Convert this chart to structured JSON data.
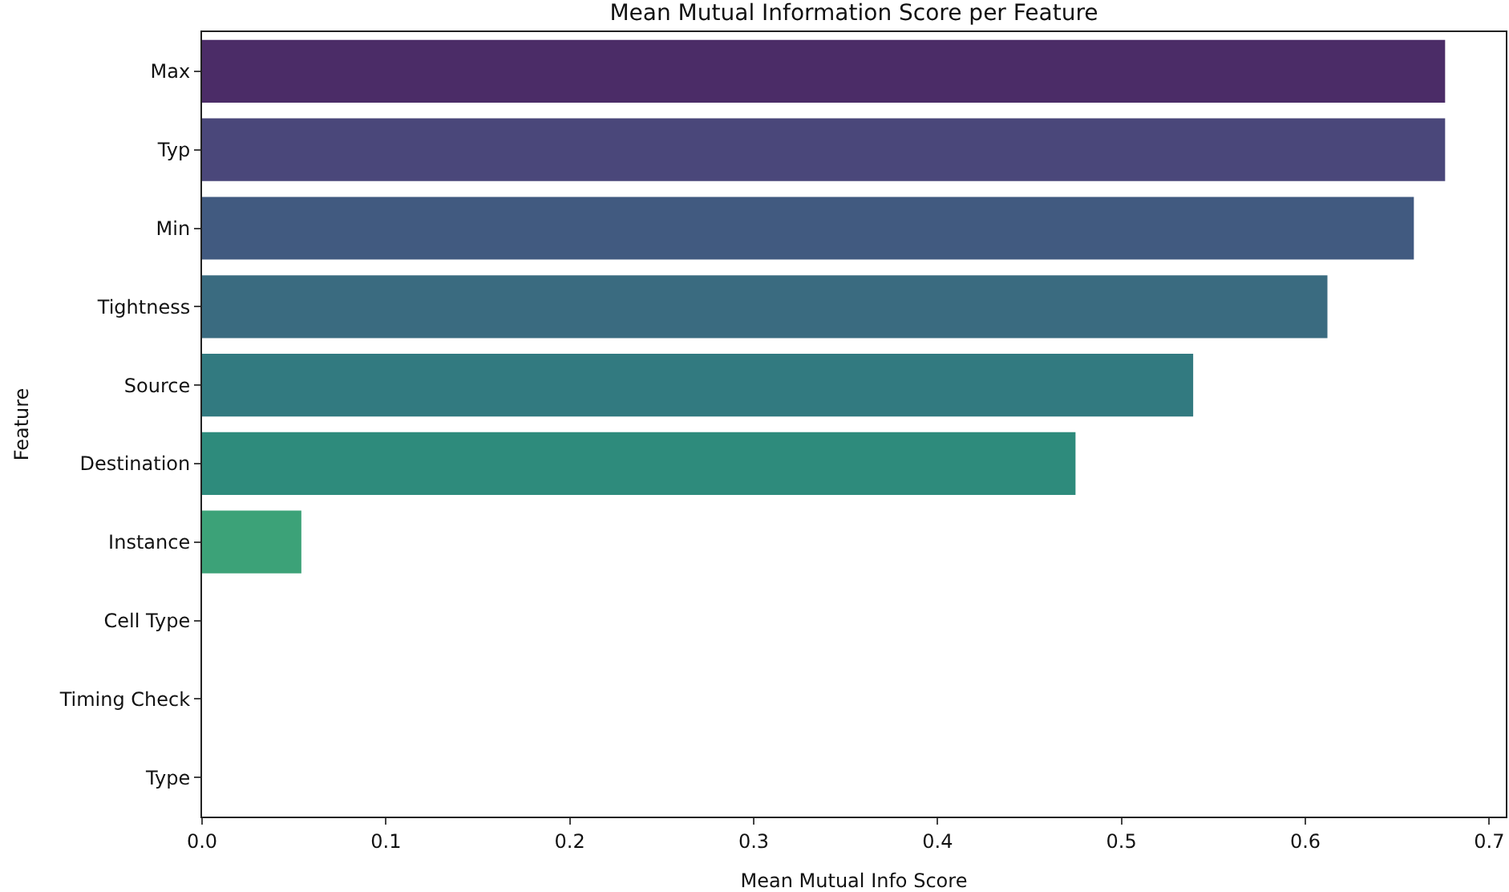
{
  "chart_data": {
    "type": "bar",
    "orientation": "horizontal",
    "title": "Mean Mutual Information Score per Feature",
    "xlabel": "Mean Mutual Info Score",
    "ylabel": "Feature",
    "categories": [
      "Max",
      "Typ",
      "Min",
      "Tightness",
      "Source",
      "Destination",
      "Instance",
      "Cell Type",
      "Timing Check",
      "Type"
    ],
    "values": [
      0.676,
      0.676,
      0.659,
      0.612,
      0.539,
      0.475,
      0.054,
      0,
      0,
      0
    ],
    "colors": [
      "#4b2c67",
      "#4a477a",
      "#415a80",
      "#3a6b80",
      "#327a80",
      "#2e8b7c",
      "#3ca278",
      null,
      null,
      null
    ],
    "xlim": [
      0,
      0.709
    ],
    "xticks": [
      {
        "value": 0,
        "label": "0.0"
      },
      0.1,
      0.2,
      0.3,
      0.4,
      0.5,
      0.6,
      0.7
    ]
  }
}
